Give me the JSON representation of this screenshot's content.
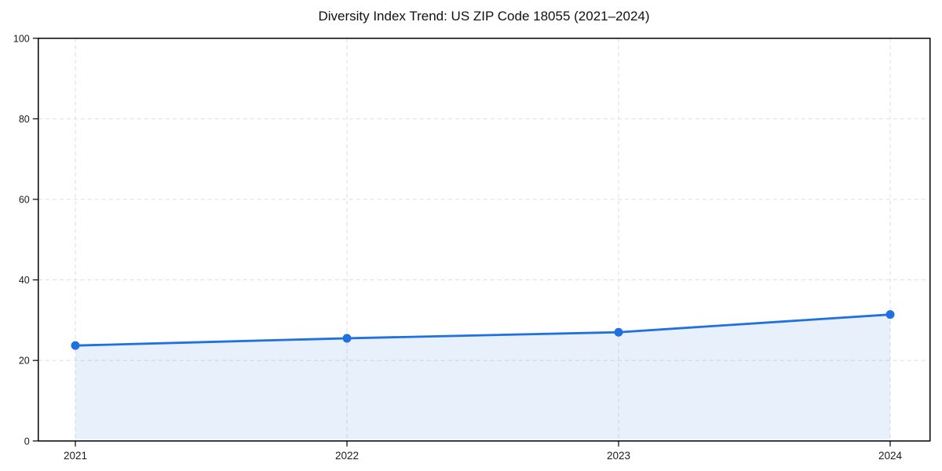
{
  "chart_data": {
    "type": "area",
    "title": "Diversity Index Trend: US ZIP Code 18055 (2021–2024)",
    "categories": [
      "2021",
      "2022",
      "2023",
      "2024"
    ],
    "series": [
      {
        "name": "Diversity Index",
        "values": [
          23.7,
          25.5,
          27.0,
          31.4
        ]
      }
    ],
    "xlabel": "",
    "ylabel": "",
    "ylim": [
      0,
      100
    ],
    "yticks": [
      0,
      20,
      40,
      60,
      80,
      100
    ],
    "grid": "dashed",
    "legend_position": "none",
    "marker": "circle",
    "line_color": "#1f70e0",
    "fill_color": "#1f70e0",
    "fill_opacity": 0.1,
    "grid_color": "#dedede",
    "axis_color": "#000000",
    "tick_label_color": "#1a1a1a",
    "background": "#ffffff"
  }
}
